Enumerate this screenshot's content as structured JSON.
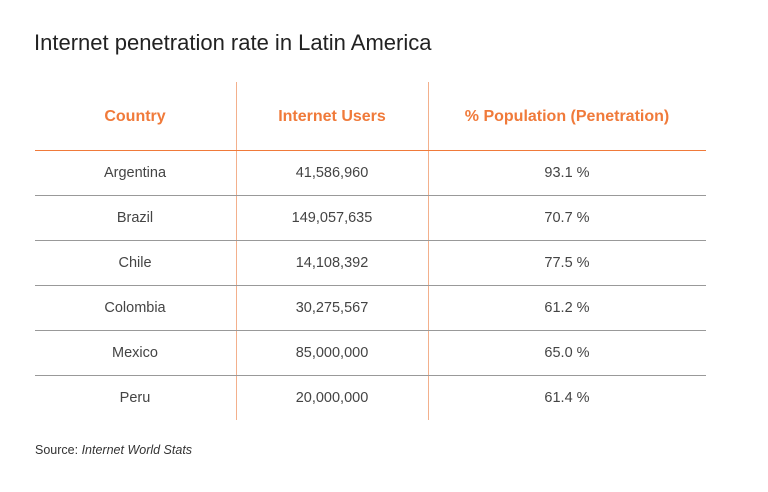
{
  "header": {
    "title": "Internet penetration rate in Latin America"
  },
  "table": {
    "columns": [
      "Country",
      "Internet Users",
      "% Population (Penetration)"
    ],
    "rows": [
      [
        "Argentina",
        "41,586,960",
        "93.1 %"
      ],
      [
        "Brazil",
        "149,057,635",
        "70.7 %"
      ],
      [
        "Chile",
        "14,108,392",
        "77.5 %"
      ],
      [
        "Colombia",
        "30,275,567",
        "61.2 %"
      ],
      [
        "Mexico",
        "85,000,000",
        "65.0 %"
      ],
      [
        "Peru",
        "20,000,000",
        "61.4 %"
      ]
    ]
  },
  "source": {
    "label": "Source:",
    "text": "Internet World Stats"
  }
}
